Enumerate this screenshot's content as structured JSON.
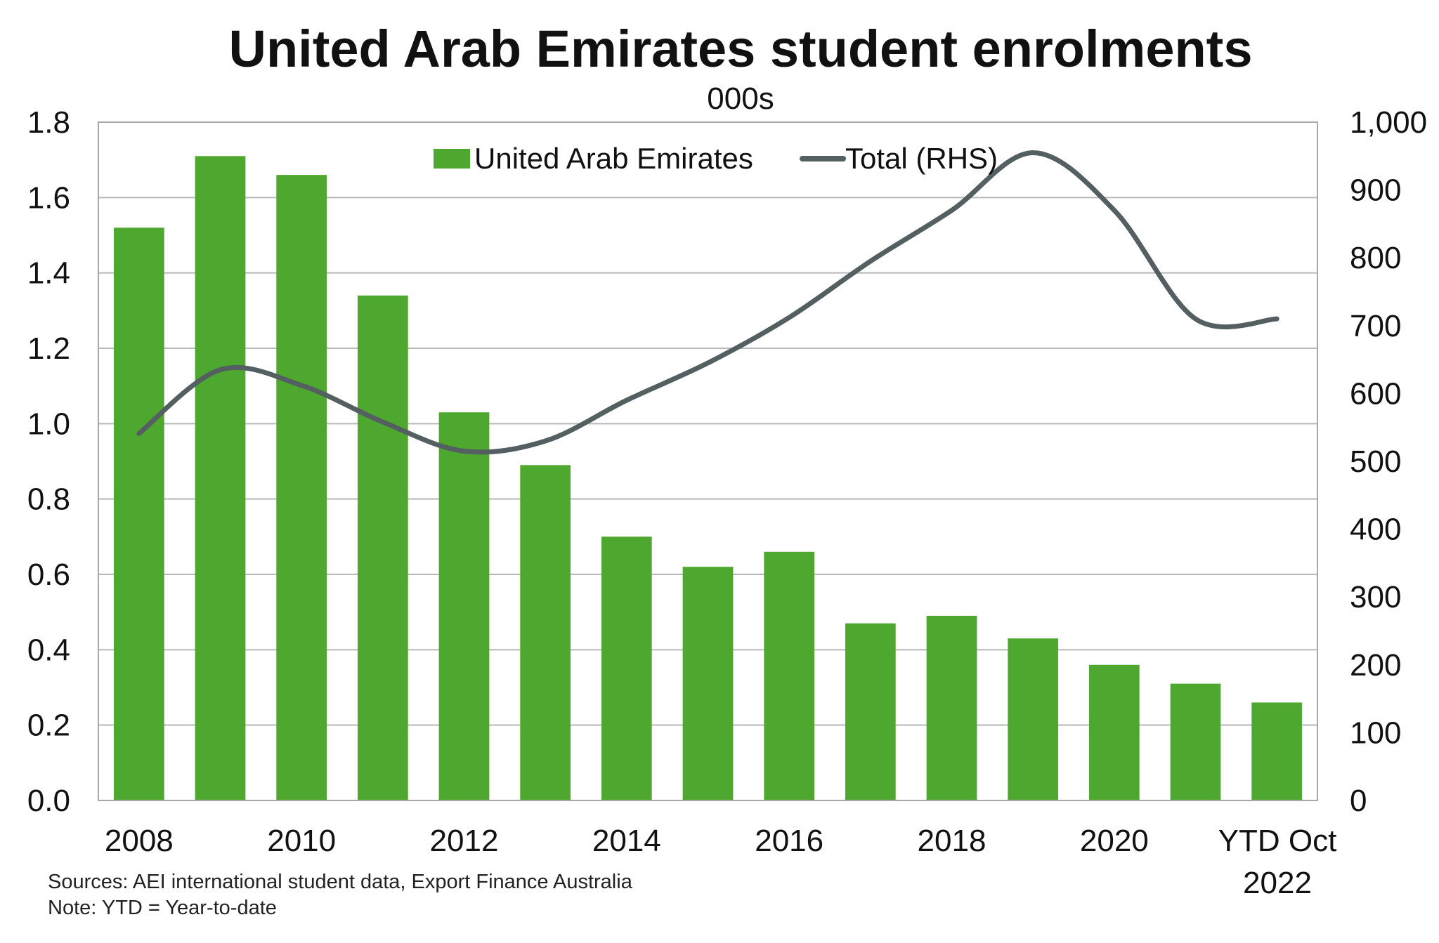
{
  "chart_data": {
    "type": "bar",
    "title": "United Arab Emirates student enrolments",
    "subtitle": "000s",
    "categories": [
      "2008",
      "2009",
      "2010",
      "2011",
      "2012",
      "2013",
      "2014",
      "2015",
      "2016",
      "2017",
      "2018",
      "2019",
      "2020",
      "2021",
      "YTD Oct 2022"
    ],
    "x_tick_labels": [
      "2008",
      "2010",
      "2012",
      "2014",
      "2016",
      "2018",
      "2020",
      "YTD Oct",
      "2022"
    ],
    "series": [
      {
        "name": "United Arab Emirates",
        "type": "bar",
        "axis": "left",
        "color": "#4ea72e",
        "values": [
          1.52,
          1.71,
          1.66,
          1.34,
          1.03,
          0.89,
          0.7,
          0.62,
          0.66,
          0.47,
          0.49,
          0.43,
          0.36,
          0.31,
          0.26
        ]
      },
      {
        "name": "Total (RHS)",
        "type": "line",
        "axis": "right",
        "color": "#545f62",
        "values": [
          541,
          635,
          612,
          558,
          515,
          530,
          590,
          645,
          712,
          795,
          870,
          955,
          870,
          710,
          710
        ]
      }
    ],
    "y_left": {
      "min": 0,
      "max": 1.8,
      "ticks": [
        "0.0",
        "0.2",
        "0.4",
        "0.6",
        "0.8",
        "1.0",
        "1.2",
        "1.4",
        "1.6",
        "1.8"
      ]
    },
    "y_right": {
      "min": 0,
      "max": 1000,
      "ticks": [
        "0",
        "100",
        "200",
        "300",
        "400",
        "500",
        "600",
        "700",
        "800",
        "900",
        "1,000"
      ]
    },
    "grid": true,
    "legend_position": "top-center",
    "sources": "Sources: AEI international student data, Export Finance Australia",
    "note": "Note: YTD = Year-to-date"
  }
}
